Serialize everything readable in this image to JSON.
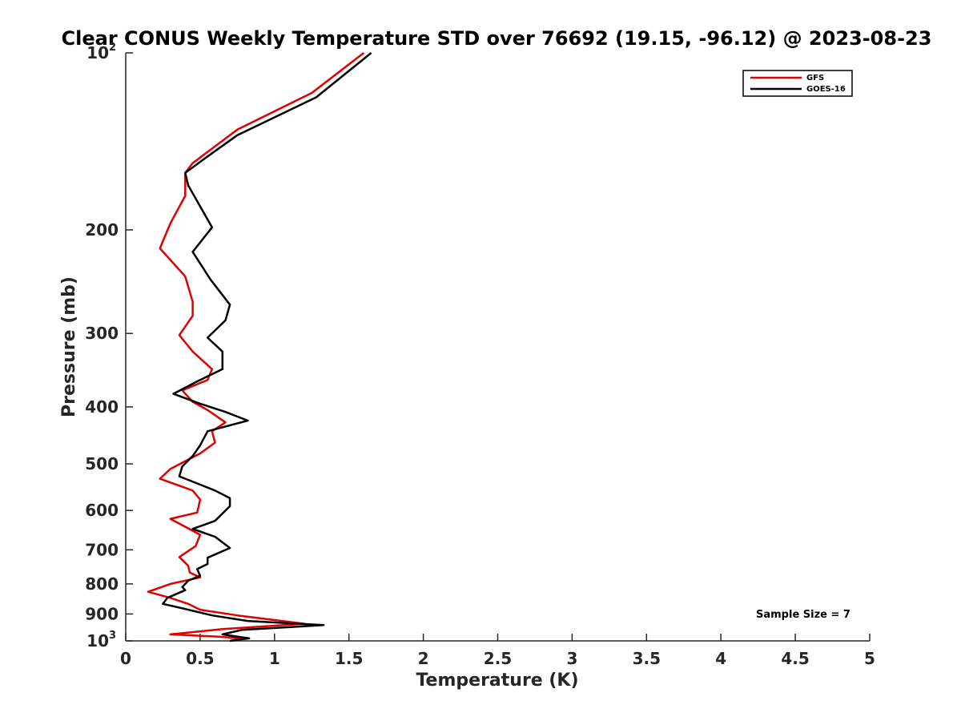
{
  "chart_data": {
    "type": "line",
    "title": "Clear CONUS Weekly Temperature STD over 76692 (19.15, -96.12) @ 2023-08-23",
    "xlabel": "Temperature (K)",
    "ylabel": "Pressure (mb)",
    "xlim": [
      0,
      5
    ],
    "ylim": [
      1000,
      100
    ],
    "y_scale": "log",
    "y_reversed": true,
    "grid": false,
    "legend_position": "top-right",
    "x_ticks": [
      "0",
      "0.5",
      "1",
      "1.5",
      "2",
      "2.5",
      "3",
      "3.5",
      "4",
      "4.5",
      "5"
    ],
    "y_ticks": [
      {
        "value": 100,
        "base": "10",
        "exp": "2"
      },
      {
        "value": 200,
        "base": "200",
        "exp": ""
      },
      {
        "value": 300,
        "base": "300",
        "exp": ""
      },
      {
        "value": 400,
        "base": "400",
        "exp": ""
      },
      {
        "value": 500,
        "base": "500",
        "exp": ""
      },
      {
        "value": 600,
        "base": "600",
        "exp": ""
      },
      {
        "value": 700,
        "base": "700",
        "exp": ""
      },
      {
        "value": 800,
        "base": "800",
        "exp": ""
      },
      {
        "value": 900,
        "base": "900",
        "exp": ""
      },
      {
        "value": 1000,
        "base": "10",
        "exp": "3"
      }
    ],
    "annotation": "Sample Size = 7",
    "series": [
      {
        "name": "GFS",
        "color": "#e00000",
        "points": [
          [
            1.6,
            100
          ],
          [
            1.25,
            117
          ],
          [
            0.75,
            135
          ],
          [
            0.45,
            154
          ],
          [
            0.4,
            160
          ],
          [
            0.4,
            175
          ],
          [
            0.3,
            195
          ],
          [
            0.23,
            215
          ],
          [
            0.4,
            240
          ],
          [
            0.45,
            265
          ],
          [
            0.45,
            280
          ],
          [
            0.36,
            302
          ],
          [
            0.45,
            322
          ],
          [
            0.58,
            345
          ],
          [
            0.55,
            360
          ],
          [
            0.38,
            375
          ],
          [
            0.45,
            392
          ],
          [
            0.55,
            405
          ],
          [
            0.67,
            425
          ],
          [
            0.58,
            440
          ],
          [
            0.6,
            460
          ],
          [
            0.5,
            480
          ],
          [
            0.3,
            510
          ],
          [
            0.23,
            530
          ],
          [
            0.45,
            555
          ],
          [
            0.5,
            575
          ],
          [
            0.48,
            605
          ],
          [
            0.3,
            620
          ],
          [
            0.5,
            660
          ],
          [
            0.47,
            690
          ],
          [
            0.36,
            720
          ],
          [
            0.42,
            745
          ],
          [
            0.43,
            765
          ],
          [
            0.5,
            780
          ],
          [
            0.3,
            800
          ],
          [
            0.15,
            825
          ],
          [
            0.3,
            845
          ],
          [
            0.42,
            865
          ],
          [
            0.5,
            885
          ],
          [
            0.75,
            905
          ],
          [
            1.05,
            925
          ],
          [
            1.2,
            935
          ],
          [
            0.65,
            955
          ],
          [
            0.3,
            975
          ],
          [
            0.6,
            983
          ],
          [
            0.78,
            990
          ],
          [
            0.7,
            1000
          ]
        ]
      },
      {
        "name": "GOES-16",
        "color": "#000000",
        "points": [
          [
            1.65,
            100
          ],
          [
            1.28,
            119
          ],
          [
            0.75,
            138
          ],
          [
            0.55,
            150
          ],
          [
            0.4,
            160
          ],
          [
            0.42,
            168
          ],
          [
            0.58,
            198
          ],
          [
            0.45,
            218
          ],
          [
            0.57,
            243
          ],
          [
            0.7,
            268
          ],
          [
            0.67,
            285
          ],
          [
            0.55,
            305
          ],
          [
            0.65,
            322
          ],
          [
            0.65,
            345
          ],
          [
            0.48,
            362
          ],
          [
            0.32,
            380
          ],
          [
            0.5,
            395
          ],
          [
            0.67,
            408
          ],
          [
            0.82,
            422
          ],
          [
            0.55,
            440
          ],
          [
            0.5,
            465
          ],
          [
            0.45,
            485
          ],
          [
            0.38,
            505
          ],
          [
            0.36,
            525
          ],
          [
            0.6,
            555
          ],
          [
            0.7,
            572
          ],
          [
            0.7,
            590
          ],
          [
            0.6,
            625
          ],
          [
            0.45,
            645
          ],
          [
            0.6,
            665
          ],
          [
            0.7,
            695
          ],
          [
            0.55,
            722
          ],
          [
            0.55,
            740
          ],
          [
            0.48,
            755
          ],
          [
            0.5,
            775
          ],
          [
            0.42,
            790
          ],
          [
            0.38,
            810
          ],
          [
            0.4,
            820
          ],
          [
            0.28,
            845
          ],
          [
            0.25,
            865
          ],
          [
            0.38,
            880
          ],
          [
            0.58,
            905
          ],
          [
            0.82,
            925
          ],
          [
            1.33,
            940
          ],
          [
            0.78,
            958
          ],
          [
            0.65,
            975
          ],
          [
            0.83,
            990
          ],
          [
            0.7,
            1000
          ]
        ]
      }
    ]
  }
}
